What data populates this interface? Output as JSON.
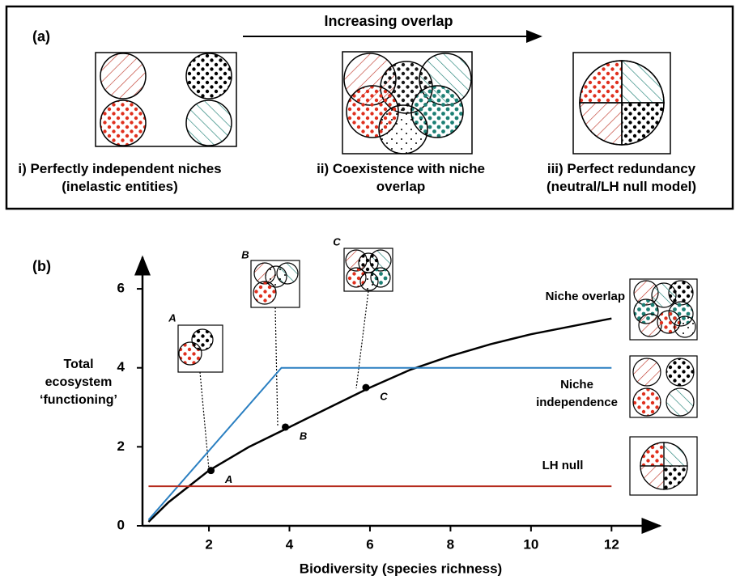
{
  "panel_a": {
    "label": "(a)",
    "arrow_label": "Increasing overlap",
    "items": [
      "i)   Perfectly independent niches (inelastic entities)",
      "ii) Coexistence with niche overlap",
      "iii)   Perfect redundancy (neutral/LH null model)"
    ]
  },
  "chart_data": {
    "type": "line",
    "panel_label": "(b)",
    "xlabel": "Biodiversity (species richness)",
    "ylabel": "Total ecosystem ‘functioning’",
    "xlim": [
      0.35,
      13.2
    ],
    "ylim": [
      0,
      6.8
    ],
    "xticks": [
      2,
      4,
      6,
      8,
      10,
      12
    ],
    "yticks": [
      0,
      2,
      4,
      6
    ],
    "series": [
      {
        "name": "Niche overlap",
        "color": "#000000",
        "x": [
          0.5,
          1,
          2,
          3,
          4,
          5,
          6,
          7,
          8,
          9,
          10,
          11,
          12
        ],
        "values": [
          0.1,
          0.6,
          1.4,
          2.0,
          2.5,
          3.0,
          3.5,
          3.95,
          4.3,
          4.6,
          4.85,
          5.05,
          5.25
        ]
      },
      {
        "name": "Niche independence",
        "color": "#2a7fc1",
        "x": [
          0.5,
          3.8,
          12
        ],
        "values": [
          0.15,
          4,
          4
        ]
      },
      {
        "name": "LH null",
        "color": "#b52a1c",
        "x": [
          0.5,
          12
        ],
        "values": [
          1,
          1
        ]
      }
    ],
    "points": {
      "labels": [
        "A",
        "B",
        "C"
      ],
      "x": [
        2.05,
        3.9,
        5.9
      ],
      "values": [
        1.4,
        2.5,
        3.5
      ]
    }
  }
}
